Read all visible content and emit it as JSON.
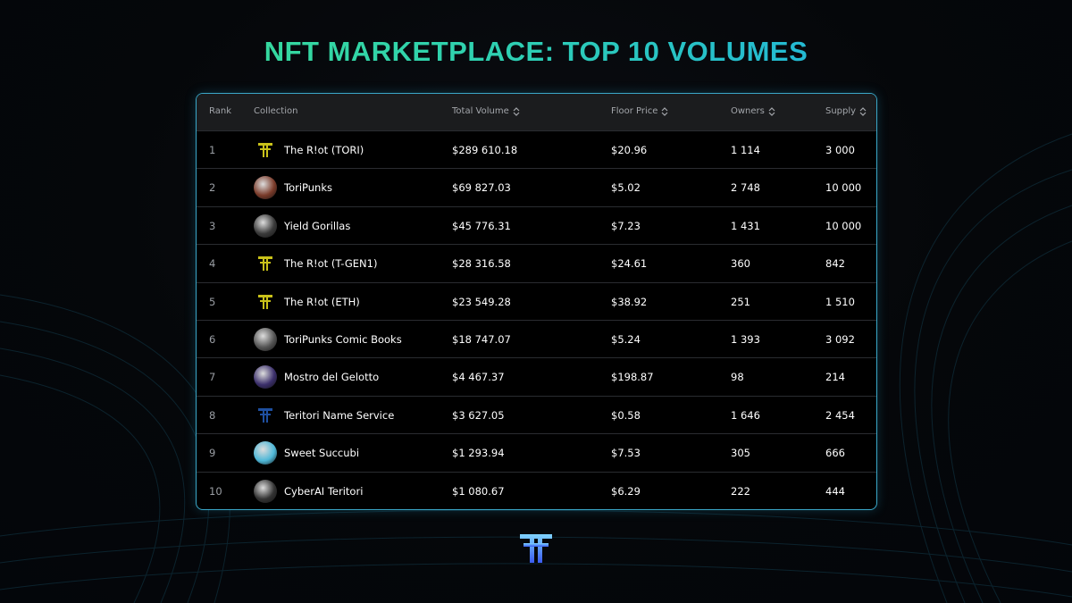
{
  "header": {
    "title": "NFT MARKETPLACE: TOP 10 VOLUMES"
  },
  "table": {
    "columns": [
      "Rank",
      "Collection",
      "Total Volume",
      "Floor Price",
      "Owners",
      "Supply"
    ],
    "rows": [
      [
        "1",
        "The R!ot (TORI)",
        "$289 610.18",
        "$20.96",
        "1 114",
        "3 000"
      ],
      [
        "2",
        "ToriPunks",
        "$69 827.03",
        "$5.02",
        "2 748",
        "10 000"
      ],
      [
        "3",
        "Yield Gorillas",
        "$45 776.31",
        "$7.23",
        "1 431",
        "10 000"
      ],
      [
        "4",
        "The R!ot (T-GEN1)",
        "$28 316.58",
        "$24.61",
        "360",
        "842"
      ],
      [
        "5",
        "The R!ot (ETH)",
        "$23 549.28",
        "$38.92",
        "251",
        "1 510"
      ],
      [
        "6",
        "ToriPunks Comic Books",
        "$18 747.07",
        "$5.24",
        "1 393",
        "3 092"
      ],
      [
        "7",
        "Mostro del Gelotto",
        "$4 467.37",
        "$198.87",
        "98",
        "214"
      ],
      [
        "8",
        "Teritori Name Service",
        "$3 627.05",
        "$0.58",
        "1 646",
        "2 454"
      ],
      [
        "9",
        "Sweet Succubi",
        "$1 293.94",
        "$7.53",
        "305",
        "666"
      ],
      [
        "10",
        "CyberAI Teritori",
        "$1 080.67",
        "$6.29",
        "222",
        "444"
      ]
    ]
  }
}
